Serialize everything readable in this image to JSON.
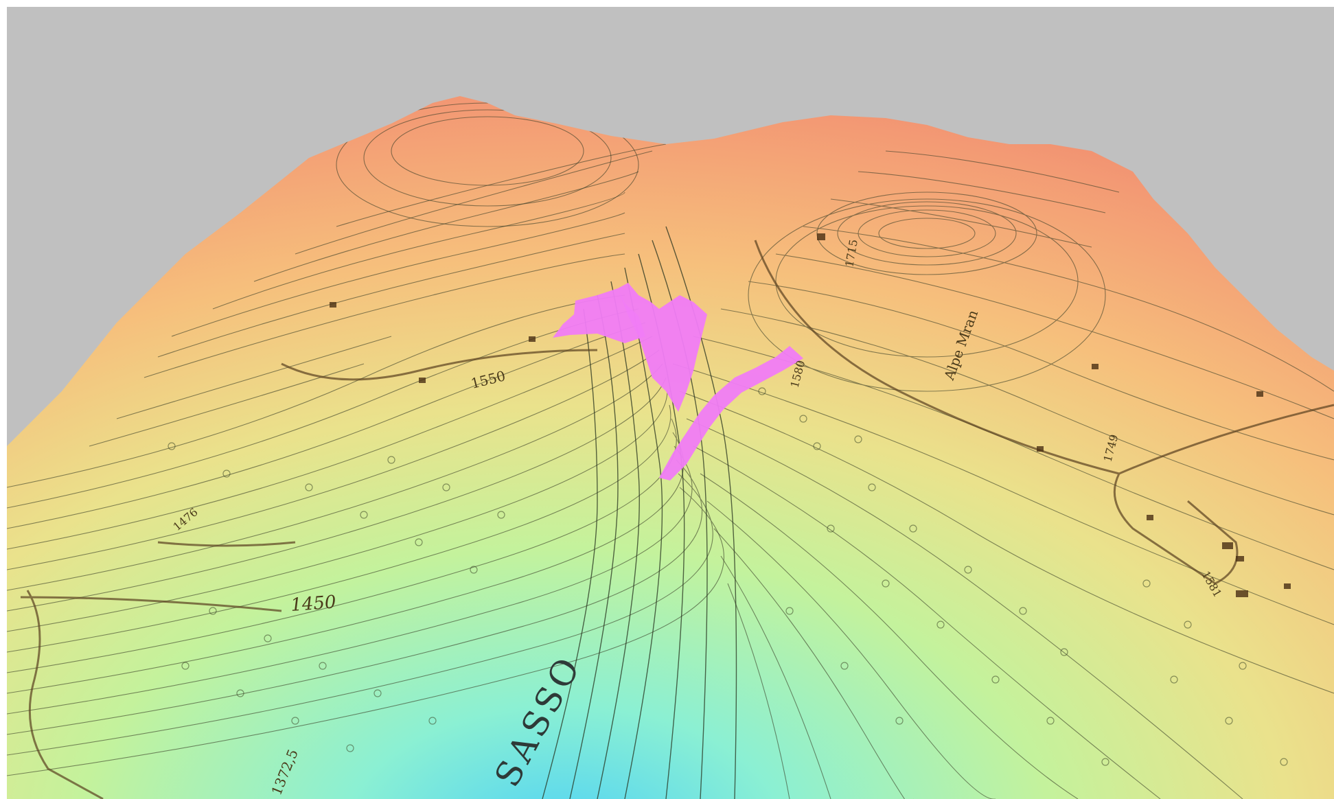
{
  "map": {
    "colors": {
      "background": "#c0c0c0",
      "high": "#f28a76",
      "upper": "#f7b079",
      "mid": "#f0d88a",
      "lower": "#d9ec95",
      "low": "#a4f3bd",
      "valley": "#5ad7f2",
      "overlay": "#f07cf5"
    },
    "labels": {
      "contour_1550": "1550",
      "contour_1450": "1450",
      "alpe": "Alpe Mran",
      "elev_1749": "1749",
      "elev_1580": "1580",
      "elev_1715": "1715",
      "elev_1372": "1372,5",
      "valley_letters": "SASSO",
      "small_1": "1476",
      "small_2": "1581"
    }
  }
}
